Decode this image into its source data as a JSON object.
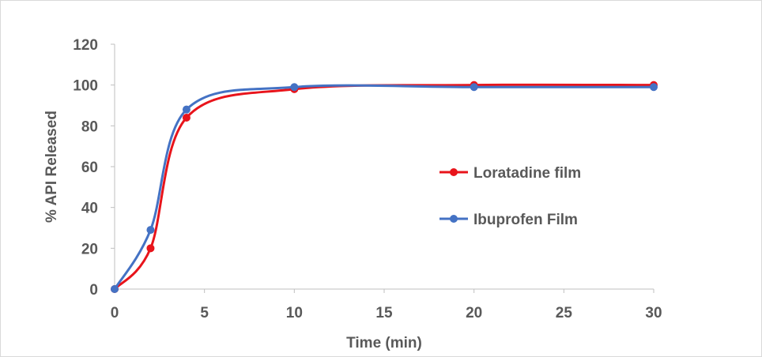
{
  "chart_data": {
    "type": "line",
    "title": "",
    "xlabel": "Time (min)",
    "ylabel": "% API Released",
    "xlim": [
      0,
      30
    ],
    "ylim": [
      0,
      120
    ],
    "x_ticks": [
      0,
      5,
      10,
      15,
      20,
      25,
      30
    ],
    "y_ticks": [
      0,
      20,
      40,
      60,
      80,
      100,
      120
    ],
    "grid": false,
    "smooth": true,
    "legend_position": "right",
    "series": [
      {
        "name": "Loratadine film",
        "color": "#e8141b",
        "x": [
          0,
          2,
          4,
          10,
          20,
          30
        ],
        "y": [
          0,
          20,
          84,
          98,
          100,
          100
        ]
      },
      {
        "name": "Ibuprofen Film",
        "color": "#4472c4",
        "x": [
          0,
          2,
          4,
          10,
          20,
          30
        ],
        "y": [
          0,
          29,
          88,
          99,
          99,
          99
        ]
      }
    ]
  }
}
